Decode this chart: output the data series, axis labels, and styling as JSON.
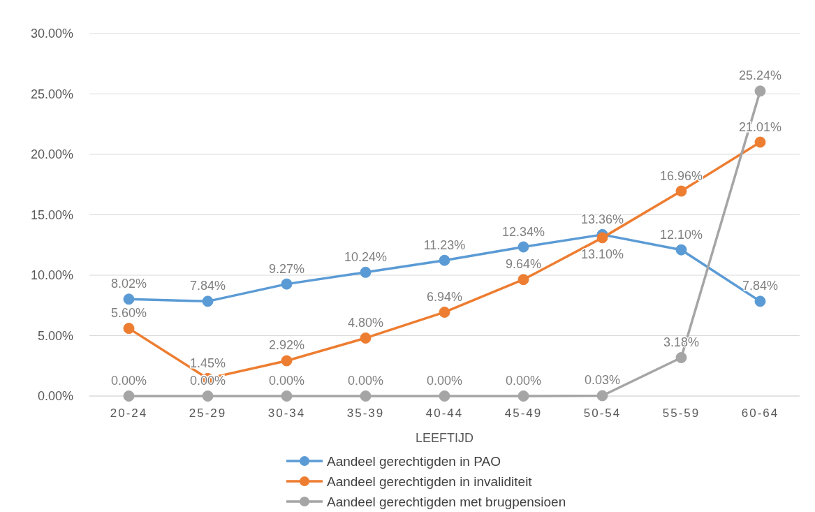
{
  "chart_data": {
    "type": "line",
    "xlabel": "LEEFTIJD",
    "categories": [
      "20-24",
      "25-29",
      "30-34",
      "35-39",
      "40-44",
      "45-49",
      "50-54",
      "55-59",
      "60-64"
    ],
    "series": [
      {
        "name": "Aandeel gerechtigden in PAO",
        "color": "#5b9bd5",
        "values": [
          8.02,
          7.84,
          9.27,
          10.24,
          11.23,
          12.34,
          13.36,
          12.1,
          7.84
        ],
        "value_labels": [
          "8.02%",
          "7.84%",
          "9.27%",
          "10.24%",
          "11.23%",
          "12.34%",
          "13.36%",
          "12.10%",
          "7.84%"
        ]
      },
      {
        "name": "Aandeel gerechtigden in invaliditeit",
        "color": "#ed7d31",
        "values": [
          5.6,
          1.45,
          2.92,
          4.8,
          6.94,
          9.64,
          13.1,
          16.96,
          21.01
        ],
        "value_labels": [
          "5.60%",
          "1.45%",
          "2.92%",
          "4.80%",
          "6.94%",
          "9.64%",
          "13.10%",
          "16.96%",
          "21.01%"
        ]
      },
      {
        "name": "Aandeel gerechtigden met brugpensioen",
        "color": "#a5a5a5",
        "values": [
          0.0,
          0.0,
          0.0,
          0.0,
          0.0,
          0.0,
          0.03,
          3.18,
          25.24
        ],
        "value_labels": [
          "0.00%",
          "0.00%",
          "0.00%",
          "0.00%",
          "0.00%",
          "0.00%",
          "0.03%",
          "3.18%",
          "25.24%"
        ]
      }
    ],
    "ylim": [
      0,
      30
    ],
    "yticks": [
      {
        "value": 0,
        "label": "0.00%"
      },
      {
        "value": 5,
        "label": "5.00%"
      },
      {
        "value": 10,
        "label": "10.00%"
      },
      {
        "value": 15,
        "label": "15.00%"
      },
      {
        "value": 20,
        "label": "20.00%"
      },
      {
        "value": 25,
        "label": "25.00%"
      },
      {
        "value": 30,
        "label": "30.00%"
      }
    ],
    "grid": "y",
    "legend": "bottom",
    "marker": "circle",
    "line_style": "solid"
  }
}
